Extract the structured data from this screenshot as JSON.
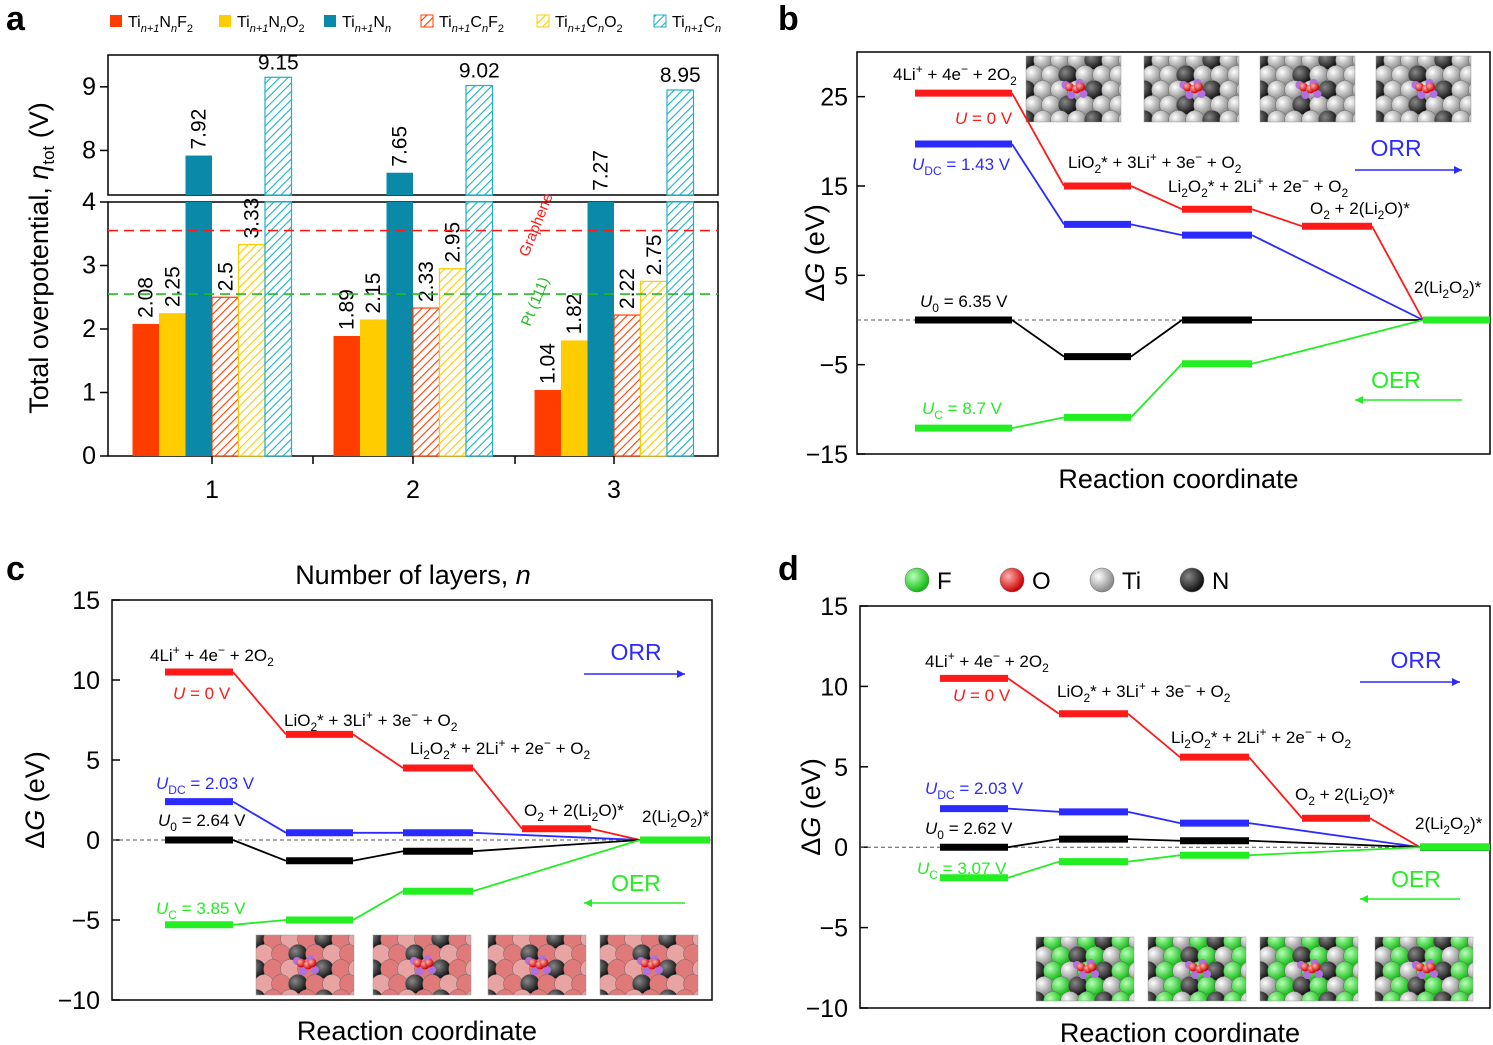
{
  "chart_data": [
    {
      "panel": "a",
      "type": "bar",
      "categories": [
        "1",
        "2",
        "3"
      ],
      "xlabel": "Number of layers, n",
      "ylabel": "Total overpotential, η_tot (V)",
      "ylim_lower": [
        0,
        4
      ],
      "ylim_upper": [
        7.3,
        9.5
      ],
      "yticks_lower": [
        "0",
        "1",
        "2",
        "3",
        "4"
      ],
      "yticks_upper": [
        "8",
        "9"
      ],
      "series": [
        {
          "name": "Ti(n+1)NnF2",
          "label_main": "Ti",
          "label_sub1": "n+1",
          "label_mid": "N",
          "label_sub2": "n",
          "label_end": "F",
          "label_sub3": "2",
          "pattern": "solid",
          "color": "#ff3d00",
          "values": [
            2.08,
            1.89,
            1.04
          ],
          "value_labels": [
            "2.08",
            "1.89",
            "1.04"
          ]
        },
        {
          "name": "Ti(n+1)NnO2",
          "label_main": "Ti",
          "label_sub1": "n+1",
          "label_mid": "N",
          "label_sub2": "n",
          "label_end": "O",
          "label_sub3": "2",
          "pattern": "solid",
          "color": "#ffcc00",
          "values": [
            2.25,
            2.15,
            1.82
          ],
          "value_labels": [
            "2.25",
            "2.15",
            "1.82"
          ]
        },
        {
          "name": "Ti(n+1)Nn",
          "label_main": "Ti",
          "label_sub1": "n+1",
          "label_mid": "N",
          "label_sub2": "n",
          "label_end": "",
          "label_sub3": "",
          "pattern": "solid",
          "color": "#0a8aa8",
          "values": [
            7.92,
            7.65,
            7.27
          ],
          "value_labels": [
            "7.92",
            "7.65",
            "7.27"
          ]
        },
        {
          "name": "Ti(n+1)CnF2",
          "label_main": "Ti",
          "label_sub1": "n+1",
          "label_mid": "C",
          "label_sub2": "n",
          "label_end": "F",
          "label_sub3": "2",
          "pattern": "hatch",
          "color": "#ff3d00",
          "values": [
            2.5,
            2.33,
            2.22
          ],
          "value_labels": [
            "2.5",
            "2.33",
            "2.22"
          ]
        },
        {
          "name": "Ti(n+1)CnO2",
          "label_main": "Ti",
          "label_sub1": "n+1",
          "label_mid": "C",
          "label_sub2": "n",
          "label_end": "O",
          "label_sub3": "2",
          "pattern": "hatch",
          "color": "#ffcc00",
          "values": [
            3.33,
            2.95,
            2.75
          ],
          "value_labels": [
            "3.33",
            "2.95",
            "2.75"
          ]
        },
        {
          "name": "Ti(n+1)Cn",
          "label_main": "Ti",
          "label_sub1": "n+1",
          "label_mid": "C",
          "label_sub2": "n",
          "label_end": "",
          "label_sub3": "",
          "pattern": "hatch",
          "color": "#1ab0c8",
          "values": [
            9.15,
            9.02,
            8.95
          ],
          "value_labels": [
            "9.15",
            "9.02",
            "8.95"
          ]
        }
      ],
      "reference_lines": [
        {
          "name": "Graphene",
          "value": 3.55,
          "color": "#ff1a1a"
        },
        {
          "name": "Pt (111)",
          "value": 2.55,
          "color": "#22bb22"
        }
      ]
    },
    {
      "panel": "b",
      "type": "line",
      "xlabel": "Reaction coordinate",
      "ylabel": "ΔG (eV)",
      "ylim": [
        -15,
        30
      ],
      "yticks": [
        "25",
        "15",
        "5",
        "−5",
        "−15"
      ],
      "ytick_values": [
        25,
        15,
        5,
        -5,
        -15
      ],
      "step_labels": [
        {
          "main": "4Li",
          "sup": "+",
          "rest": " + 4e",
          "sup2": "−",
          "rest2": " + 2O",
          "sub": "2"
        },
        {
          "main": "LiO",
          "sub": "2",
          "rest": "* + 3Li",
          "sup": "+",
          "rest2": " + 3e",
          "sup2": "−",
          "rest3": " + O",
          "sub2": "2"
        },
        {
          "main": "Li",
          "sub": "2",
          "rest": "O",
          "sub2": "2",
          "rest2": "* + 2Li",
          "sup": "+",
          "rest3": " + 2e",
          "sup2": "−",
          "rest4": " + O",
          "sub3": "2"
        },
        {
          "main": "O",
          "sub": "2",
          "rest": " + 2(Li",
          "sub2": "2",
          "rest2": "O)*"
        },
        {
          "main": "2(Li",
          "sub": "2",
          "rest": "O",
          "sub2": "2",
          "rest2": ")*"
        }
      ],
      "series": [
        {
          "name": "U = 0 V",
          "var": "U",
          "sub": "",
          "value_text": " = 0 V",
          "color": "#ff1a1a",
          "values": [
            25.4,
            15.0,
            12.4,
            10.5,
            0
          ]
        },
        {
          "name": "U_DC = 1.43 V",
          "var": "U",
          "sub": "DC",
          "value_text": " = 1.43 V",
          "color": "#2b2bff",
          "values": [
            19.7,
            10.7,
            9.5,
            null,
            0
          ]
        },
        {
          "name": "U_0 = 6.35 V",
          "var": "U",
          "sub": "0",
          "value_text": " = 6.35 V",
          "color": "#000000",
          "values": [
            0,
            -4.1,
            0,
            null,
            0
          ]
        },
        {
          "name": "U_C = 8.7 V",
          "var": "U",
          "sub": "C",
          "value_text": " = 8.7 V",
          "color": "#22ee22",
          "values": [
            -12.1,
            -10.9,
            -4.9,
            null,
            0
          ]
        }
      ],
      "arrows": {
        "orr": "ORR",
        "oer": "OER"
      }
    },
    {
      "panel": "c",
      "type": "line",
      "xlabel": "Reaction coordinate",
      "ylabel": "ΔG (eV)",
      "ylim": [
        -10,
        15
      ],
      "yticks": [
        "15",
        "10",
        "5",
        "0",
        "−5",
        "−10"
      ],
      "ytick_values": [
        15,
        10,
        5,
        0,
        -5,
        -10
      ],
      "step_labels": [
        {
          "main": "4Li",
          "sup": "+",
          "rest": " + 4e",
          "sup2": "−",
          "rest2": " + 2O",
          "sub": "2"
        },
        {
          "main": "LiO",
          "sub": "2",
          "rest": "* + 3Li",
          "sup": "+",
          "rest2": " + 3e",
          "sup2": "−",
          "rest3": " + O",
          "sub2": "2"
        },
        {
          "main": "Li",
          "sub": "2",
          "rest": "O",
          "sub2": "2",
          "rest2": "* + 2Li",
          "sup": "+",
          "rest3": " + 2e",
          "sup2": "−",
          "rest4": " + O",
          "sub3": "2"
        },
        {
          "main": "O",
          "sub": "2",
          "rest": " + 2(Li",
          "sub2": "2",
          "rest2": "O)*"
        },
        {
          "main": "2(Li",
          "sub": "2",
          "rest": "O",
          "sub2": "2",
          "rest2": ")*"
        }
      ],
      "series": [
        {
          "name": "U = 0 V",
          "var": "U",
          "sub": "",
          "value_text": " = 0 V",
          "color": "#ff1a1a",
          "values": [
            10.5,
            6.6,
            4.5,
            0.7,
            0
          ]
        },
        {
          "name": "U_DC = 2.03 V",
          "var": "U",
          "sub": "DC",
          "value_text": " = 2.03 V",
          "color": "#2b2bff",
          "values": [
            2.4,
            0.45,
            0.45,
            null,
            0
          ]
        },
        {
          "name": "U_0 = 2.64 V",
          "var": "U",
          "sub": "0",
          "value_text": " = 2.64 V",
          "color": "#000000",
          "values": [
            0,
            -1.3,
            -0.7,
            null,
            0
          ]
        },
        {
          "name": "U_C = 3.85 V",
          "var": "U",
          "sub": "C",
          "value_text": " = 3.85 V",
          "color": "#22ee22",
          "values": [
            -5.3,
            -5.0,
            -3.2,
            null,
            0
          ]
        }
      ],
      "arrows": {
        "orr": "ORR",
        "oer": "OER"
      }
    },
    {
      "panel": "d",
      "type": "line",
      "xlabel": "Reaction coordinate",
      "ylabel": "ΔG (eV)",
      "ylim": [
        -10,
        15
      ],
      "yticks": [
        "15",
        "10",
        "5",
        "0",
        "−5",
        "−10"
      ],
      "ytick_values": [
        15,
        10,
        5,
        0,
        -5,
        -10
      ],
      "step_labels": [
        {
          "main": "4Li",
          "sup": "+",
          "rest": " + 4e",
          "sup2": "−",
          "rest2": " + 2O",
          "sub": "2"
        },
        {
          "main": "LiO",
          "sub": "2",
          "rest": "* + 3Li",
          "sup": "+",
          "rest2": " + 3e",
          "sup2": "−",
          "rest3": " + O",
          "sub2": "2"
        },
        {
          "main": "Li",
          "sub": "2",
          "rest": "O",
          "sub2": "2",
          "rest2": "* + 2Li",
          "sup": "+",
          "rest3": " + 2e",
          "sup2": "−",
          "rest4": " + O",
          "sub3": "2"
        },
        {
          "main": "O",
          "sub": "2",
          "rest": " + 2(Li",
          "sub2": "2",
          "rest2": "O)*"
        },
        {
          "main": "2(Li",
          "sub": "2",
          "rest": "O",
          "sub2": "2",
          "rest2": ")*"
        }
      ],
      "series": [
        {
          "name": "U = 0 V",
          "var": "U",
          "sub": "",
          "value_text": " = 0 V",
          "color": "#ff1a1a",
          "values": [
            10.5,
            8.3,
            5.6,
            1.8,
            0
          ]
        },
        {
          "name": "U_DC = 2.03 V",
          "var": "U",
          "sub": "DC",
          "value_text": " = 2.03 V",
          "color": "#2b2bff",
          "values": [
            2.4,
            2.2,
            1.5,
            null,
            0
          ]
        },
        {
          "name": "U_0 = 2.62 V",
          "var": "U",
          "sub": "0",
          "value_text": " = 2.62 V",
          "color": "#000000",
          "values": [
            0,
            0.5,
            0.4,
            null,
            0
          ]
        },
        {
          "name": "U_C = 3.07 V",
          "var": "U",
          "sub": "C",
          "value_text": " = 3.07 V",
          "color": "#22ee22",
          "values": [
            -1.9,
            -0.9,
            -0.5,
            null,
            0
          ]
        }
      ],
      "arrows": {
        "orr": "ORR",
        "oer": "OER"
      },
      "atom_legend": [
        {
          "label": "F",
          "color": "#22dd22"
        },
        {
          "label": "O",
          "color": "#ee1111"
        },
        {
          "label": "Ti",
          "color": "#bbbbbb"
        },
        {
          "label": "N",
          "color": "#333333"
        }
      ]
    }
  ],
  "panel_letters": {
    "a": "a",
    "b": "b",
    "c": "c",
    "d": "d"
  },
  "colors": {
    "red": "#ff1a1a",
    "blue": "#2b2bff",
    "black": "#000000",
    "green": "#22ee22",
    "dash": "#555555"
  }
}
